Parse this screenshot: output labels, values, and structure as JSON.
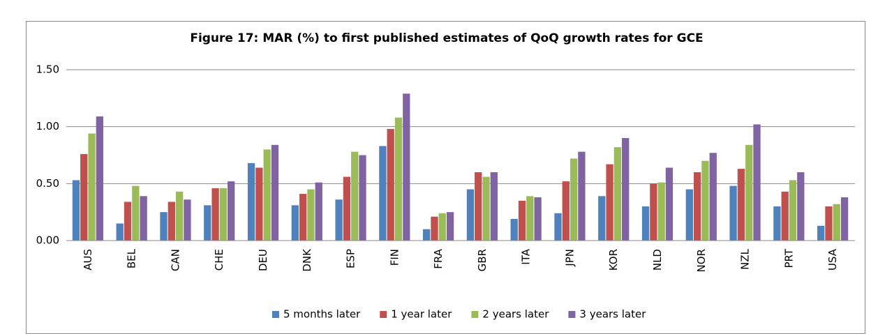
{
  "chart_data": {
    "type": "bar",
    "title": "Figure 17: MAR (%) to first published estimates of QoQ growth rates for GCE",
    "categories": [
      "AUS",
      "BEL",
      "CAN",
      "CHE",
      "DEU",
      "DNK",
      "ESP",
      "FIN",
      "FRA",
      "GBR",
      "ITA",
      "JPN",
      "KOR",
      "NLD",
      "NOR",
      "NZL",
      "PRT",
      "USA"
    ],
    "series": [
      {
        "name": "5 months later",
        "color": "#4f81bd",
        "values": [
          0.53,
          0.15,
          0.25,
          0.31,
          0.68,
          0.31,
          0.36,
          0.83,
          0.1,
          0.45,
          0.19,
          0.24,
          0.39,
          0.3,
          0.45,
          0.48,
          0.3,
          0.13
        ]
      },
      {
        "name": "1 year later",
        "color": "#c0504d",
        "values": [
          0.76,
          0.34,
          0.34,
          0.46,
          0.64,
          0.41,
          0.56,
          0.98,
          0.21,
          0.6,
          0.35,
          0.52,
          0.67,
          0.5,
          0.6,
          0.63,
          0.43,
          0.3
        ]
      },
      {
        "name": "2 years later",
        "color": "#9bbb59",
        "values": [
          0.94,
          0.48,
          0.43,
          0.46,
          0.8,
          0.45,
          0.78,
          1.08,
          0.24,
          0.56,
          0.39,
          0.72,
          0.82,
          0.51,
          0.7,
          0.84,
          0.53,
          0.32
        ]
      },
      {
        "name": "3 years later",
        "color": "#8064a2",
        "values": [
          1.09,
          0.39,
          0.36,
          0.52,
          0.84,
          0.51,
          0.75,
          1.29,
          0.25,
          0.6,
          0.38,
          0.78,
          0.9,
          0.64,
          0.77,
          1.02,
          0.6,
          0.38
        ]
      }
    ],
    "ylim": [
      0,
      1.5
    ],
    "yticks": [
      {
        "value": 0,
        "label": "0.00"
      },
      {
        "value": 0.5,
        "label": "0.50"
      },
      {
        "value": 1,
        "label": "1.00"
      },
      {
        "value": 1.5,
        "label": "1.50"
      }
    ],
    "grid": true,
    "legend": "bottom"
  }
}
